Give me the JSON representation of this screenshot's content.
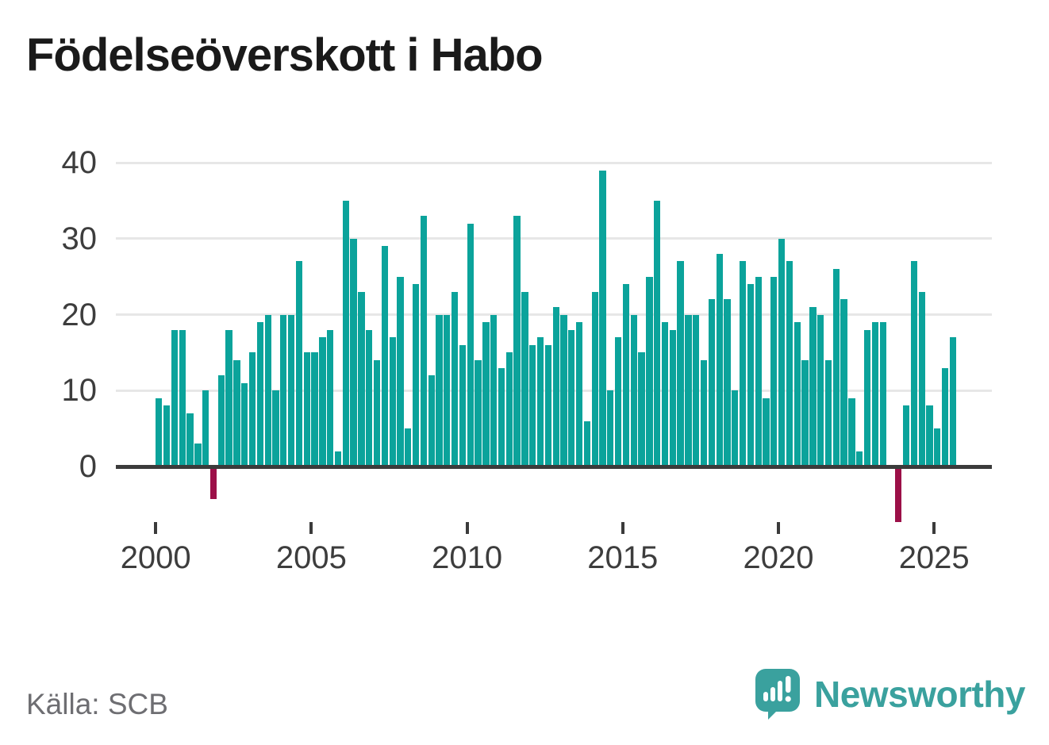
{
  "title": "Födelseöverskott i Habo",
  "source": "Källa: SCB",
  "brand": {
    "name": "Newsworthy"
  },
  "colors": {
    "positive_bar": "#0ba39b",
    "negative_bar": "#9c1048",
    "axis": "#3b3b3b",
    "grid": "#e7e7e7",
    "title_text": "#1a1a1a",
    "axis_label": "#3d3d3d",
    "source_text": "#6e6e72",
    "brand_teal": "#3aa19e"
  },
  "chart_data": {
    "type": "bar",
    "title": "Födelseöverskott i Habo",
    "period": "quarterly",
    "start_year": 2000,
    "start_quarter": 1,
    "values": [
      9,
      8,
      18,
      18,
      7,
      3,
      10,
      -4,
      12,
      18,
      14,
      11,
      15,
      19,
      20,
      10,
      20,
      20,
      27,
      15,
      15,
      17,
      18,
      2,
      35,
      30,
      23,
      18,
      14,
      29,
      17,
      25,
      5,
      24,
      33,
      12,
      20,
      20,
      23,
      16,
      32,
      14,
      19,
      20,
      13,
      15,
      33,
      23,
      16,
      17,
      16,
      21,
      20,
      18,
      19,
      6,
      23,
      39,
      10,
      17,
      24,
      20,
      15,
      25,
      35,
      19,
      18,
      27,
      20,
      20,
      14,
      22,
      28,
      22,
      10,
      27,
      24,
      25,
      9,
      25,
      30,
      27,
      19,
      14,
      21,
      20,
      14,
      26,
      22,
      9,
      2,
      18,
      19,
      19,
      0,
      -7,
      8,
      27,
      23,
      8,
      5,
      13,
      17
    ],
    "x_ticks": [
      2000,
      2005,
      2010,
      2015,
      2020,
      2025
    ],
    "y_ticks": [
      0,
      10,
      20,
      30,
      40
    ],
    "ylim": [
      -8,
      40
    ],
    "grid": "horizontal",
    "legend": "none"
  }
}
